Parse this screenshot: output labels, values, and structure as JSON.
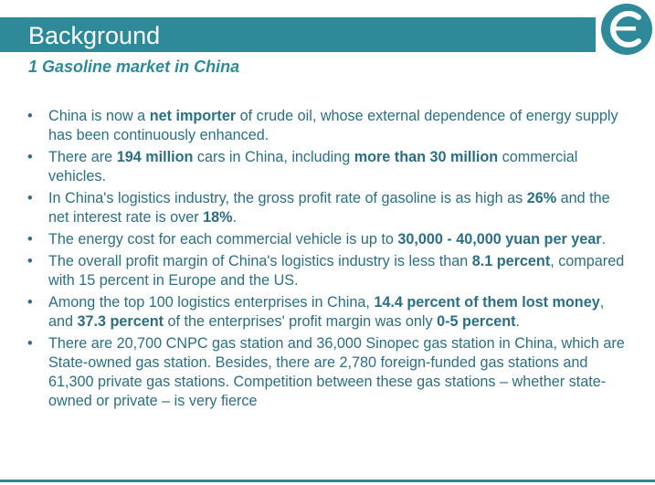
{
  "header": {
    "title": "Background",
    "subtitle": "1 Gasoline market in China"
  },
  "bullets": [
    [
      {
        "t": "China is now a ",
        "b": false
      },
      {
        "t": "net importer",
        "b": true
      },
      {
        "t": " of crude oil, whose external dependence of energy supply has been continuously enhanced.",
        "b": false
      }
    ],
    [
      {
        "t": "There are ",
        "b": false
      },
      {
        "t": "194 million",
        "b": true
      },
      {
        "t": " cars in China, including ",
        "b": false
      },
      {
        "t": "more than 30 million",
        "b": true
      },
      {
        "t": " commercial vehicles.",
        "b": false
      }
    ],
    [
      {
        "t": "In China's logistics industry, the gross profit rate of gasoline is as high as ",
        "b": false
      },
      {
        "t": "26%",
        "b": true
      },
      {
        "t": " and the net interest rate is over ",
        "b": false
      },
      {
        "t": "18%",
        "b": true
      },
      {
        "t": ".",
        "b": false
      }
    ],
    [
      {
        "t": "The energy cost for each commercial vehicle is up to ",
        "b": false
      },
      {
        "t": "30,000 - 40,000 yuan per year",
        "b": true
      },
      {
        "t": ".",
        "b": false
      }
    ],
    [
      {
        "t": "The overall profit margin of China's logistics industry is less than ",
        "b": false
      },
      {
        "t": "8.1 percent",
        "b": true
      },
      {
        "t": ", compared with 15 percent in Europe and the US.",
        "b": false
      }
    ],
    [
      {
        "t": "Among the top 100 logistics enterprises in China, ",
        "b": false
      },
      {
        "t": "14.4 percent of them lost money",
        "b": true
      },
      {
        "t": ", and ",
        "b": false
      },
      {
        "t": "37.3 percent",
        "b": true
      },
      {
        "t": " of the enterprises' profit margin was only ",
        "b": false
      },
      {
        "t": "0-5 percent",
        "b": true
      },
      {
        "t": ".",
        "b": false
      }
    ],
    [
      {
        "t": "There are 20,700 CNPC gas station and 36,000 Sinopec gas station in China, which are State-owned gas station. Besides, there are 2,780 foreign-funded gas stations and 61,300 private gas stations. Competition between these gas stations – whether state-owned or private – is very fierce",
        "b": false
      }
    ]
  ],
  "colors": {
    "accent": "#2e8a99",
    "text": "#2a6f86"
  },
  "logo": {
    "icon": "company-logo-icon"
  }
}
